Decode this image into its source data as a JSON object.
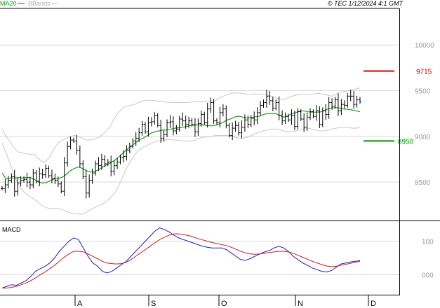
{
  "header": {
    "ma_label": "MA20",
    "bbands_label": "BBands",
    "copyright": "© TEC 1/12/2024 4:1 GMT"
  },
  "macd_label": "MACD",
  "colors": {
    "ma": "#1aa11a",
    "bbands": "#c8c8c8",
    "price_bar": "#000000",
    "resistance": "#cc0000",
    "support": "#009900",
    "macd_line": "#1a1acc",
    "signal_line": "#cc1a1a",
    "grid": "#d9d9d9",
    "tick_text": "#9a9a9a"
  },
  "chart_data": [
    {
      "type": "ohlc",
      "title": "",
      "ylim": [
        8080,
        10400
      ],
      "y_ticks": [
        {
          "value": 10000,
          "label": "10000"
        },
        {
          "value": 9500,
          "label": "9500"
        },
        {
          "value": 9000,
          "label": "9000"
        },
        {
          "value": 8500,
          "label": "8500"
        }
      ],
      "x_ticks": [
        "A",
        "S",
        "O",
        "N",
        "D"
      ],
      "levels": [
        {
          "name": "resistance",
          "value": 9715,
          "label": "9715"
        },
        {
          "name": "support",
          "value": 8950,
          "label": "8950"
        }
      ],
      "closes": [
        8430,
        8470,
        8520,
        8560,
        8400,
        8490,
        8520,
        8530,
        8500,
        8470,
        8600,
        8510,
        8590,
        8580,
        8650,
        8570,
        8540,
        8520,
        8480,
        8400,
        8710,
        8890,
        8960,
        8950,
        8850,
        8700,
        8560,
        8380,
        8520,
        8600,
        8700,
        8680,
        8750,
        8700,
        8720,
        8620,
        8680,
        8720,
        8770,
        8780,
        8850,
        8890,
        8950,
        8980,
        9040,
        9130,
        9050,
        9150,
        9160,
        9230,
        9120,
        8980,
        9020,
        9150,
        9160,
        9060,
        9080,
        9190,
        9170,
        9130,
        9170,
        9130,
        9050,
        9140,
        9240,
        9150,
        9300,
        9370,
        9170,
        9150,
        9260,
        9300,
        9120,
        9010,
        9090,
        9120,
        9040,
        9100,
        9180,
        9130,
        9200,
        9180,
        9260,
        9340,
        9370,
        9440,
        9390,
        9310,
        9370,
        9230,
        9170,
        9220,
        9180,
        9230,
        9110,
        9270,
        9190,
        9100,
        9210,
        9270,
        9220,
        9280,
        9130,
        9280,
        9240,
        9370,
        9330,
        9400,
        9280,
        9350,
        9340,
        9440,
        9440,
        9350,
        9400,
        9380
      ],
      "ma20": [
        8600,
        8535,
        8545,
        8545,
        8550,
        8545,
        8550,
        8550,
        8530,
        8500,
        8490,
        8495,
        8515,
        8535,
        8540,
        8555,
        8585,
        8625,
        8650,
        8665,
        8650,
        8625,
        8610,
        8615,
        8635,
        8665,
        8690,
        8710,
        8740,
        8775,
        8815,
        8855,
        8890,
        8925,
        8960,
        8980,
        9005,
        9035,
        9050,
        9060,
        9070,
        9070,
        9080,
        9090,
        9095,
        9100,
        9110,
        9120,
        9125,
        9125,
        9125,
        9120,
        9115,
        9120,
        9135,
        9155,
        9180,
        9195,
        9215,
        9220,
        9210,
        9200,
        9205,
        9215,
        9220,
        9240,
        9250,
        9250,
        9250,
        9230,
        9210,
        9220,
        9250,
        9260,
        9275,
        9280,
        9270,
        9265,
        9265,
        9265,
        9280,
        9300,
        9310,
        9315,
        9310,
        9300,
        9295,
        9290,
        9280,
        9270
      ],
      "bb_upper": [
        9080,
        9000,
        8940,
        8870,
        8830,
        8820,
        8810,
        8805,
        8800,
        8760,
        8720,
        8730,
        8790,
        8870,
        8930,
        8960,
        8980,
        9000,
        9010,
        9000,
        8980,
        8960,
        8960,
        8970,
        8990,
        9020,
        9060,
        9120,
        9200,
        9270,
        9310,
        9330,
        9340,
        9350,
        9370,
        9390,
        9395,
        9395,
        9390,
        9385,
        9380,
        9375,
        9370,
        9370,
        9370,
        9370,
        9370,
        9375,
        9380,
        9385,
        9380,
        9380,
        9385,
        9390,
        9420,
        9440,
        9460,
        9470,
        9475,
        9475,
        9470,
        9460,
        9460,
        9465,
        9460,
        9460,
        9450,
        9440,
        9420,
        9410,
        9400,
        9420,
        9440,
        9450,
        9460,
        9460,
        9460,
        9460,
        9470,
        9470,
        9460,
        9450,
        9440,
        9460,
        9480,
        9490,
        9500,
        9510,
        9520,
        9530
      ],
      "bb_lower": [
        8930,
        8820,
        8700,
        8580,
        8480,
        8410,
        8370,
        8340,
        8310,
        8280,
        8240,
        8220,
        8210,
        8210,
        8210,
        8200,
        8180,
        8160,
        8160,
        8150,
        8150,
        8170,
        8200,
        8220,
        8240,
        8260,
        8290,
        8330,
        8380,
        8460,
        8560,
        8660,
        8730,
        8800,
        8850,
        8880,
        8900,
        8920,
        8940,
        8950,
        8960,
        8965,
        8965,
        8960,
        8955,
        8950,
        8950,
        8950,
        8960,
        8980,
        8990,
        8995,
        9000,
        9010,
        9010,
        9010,
        9010,
        9000,
        8990,
        8980,
        8980,
        8990,
        9010,
        9030,
        9050,
        9060,
        9070,
        9080,
        9080,
        9075,
        9060,
        9050,
        9050,
        9060,
        9070,
        9080,
        9090,
        9080,
        9070,
        9060,
        9060,
        9070,
        9080,
        9090,
        9095,
        9100,
        9100,
        9090,
        9090,
        9100
      ]
    },
    {
      "type": "line",
      "title": "",
      "ylim": [
        -60,
        160
      ],
      "y_ticks": [
        {
          "value": 100,
          "label": "100"
        },
        {
          "value": 0,
          "label": "000"
        }
      ],
      "series": [
        {
          "name": "macd",
          "values": [
            -40,
            -35,
            -30,
            -32,
            -25,
            -18,
            -5,
            10,
            18,
            25,
            35,
            50,
            70,
            85,
            100,
            110,
            105,
            80,
            55,
            35,
            25,
            10,
            5,
            10,
            20,
            30,
            40,
            55,
            70,
            85,
            100,
            115,
            130,
            140,
            135,
            128,
            118,
            110,
            105,
            100,
            95,
            90,
            85,
            82,
            80,
            80,
            80,
            75,
            65,
            55,
            45,
            43,
            48,
            55,
            62,
            68,
            72,
            80,
            85,
            80,
            70,
            55,
            45,
            35,
            28,
            20,
            15,
            10,
            8,
            12,
            22,
            32,
            35,
            38,
            40,
            42
          ]
        },
        {
          "name": "signal",
          "values": [
            -40,
            -40,
            -38,
            -35,
            -30,
            -25,
            -18,
            -10,
            0,
            8,
            18,
            28,
            40,
            52,
            62,
            70,
            70,
            68,
            62,
            55,
            48,
            40,
            35,
            33,
            32,
            33,
            37,
            45,
            55,
            65,
            75,
            85,
            95,
            105,
            112,
            118,
            122,
            122,
            120,
            117,
            113,
            108,
            104,
            100,
            96,
            93,
            90,
            87,
            82,
            76,
            70,
            65,
            62,
            61,
            62,
            64,
            66,
            68,
            70,
            70,
            68,
            64,
            58,
            52,
            46,
            40,
            35,
            30,
            26,
            24,
            25,
            28,
            31,
            34,
            37,
            40
          ]
        }
      ]
    }
  ]
}
